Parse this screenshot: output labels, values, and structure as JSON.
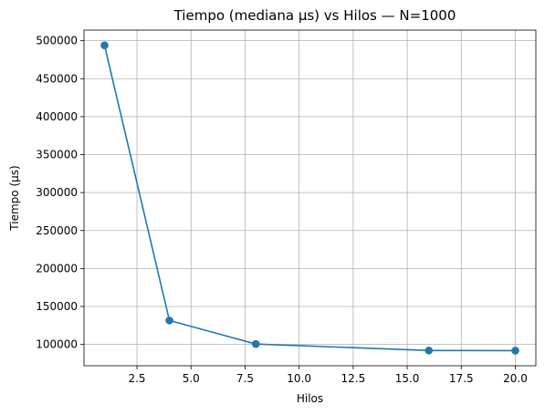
{
  "chart_data": {
    "type": "line",
    "title": "Tiempo (mediana µs) vs Hilos — N=1000",
    "xlabel": "Hilos",
    "ylabel": "Tiempo (µs)",
    "x": [
      1,
      4,
      8,
      16,
      20
    ],
    "series": [
      {
        "values": [
          494000,
          131500,
          100500,
          92000,
          91800
        ],
        "color": "#1f77b4",
        "marker": "circle"
      }
    ],
    "xlim": [
      0.05,
      20.95
    ],
    "ylim": [
      71900,
      514000
    ],
    "xticks": [
      2.5,
      5.0,
      7.5,
      10.0,
      12.5,
      15.0,
      17.5,
      20.0
    ],
    "xtick_labels": [
      "2.5",
      "5.0",
      "7.5",
      "10.0",
      "12.5",
      "15.0",
      "17.5",
      "20.0"
    ],
    "yticks": [
      100000,
      150000,
      200000,
      250000,
      300000,
      350000,
      400000,
      450000,
      500000
    ],
    "ytick_labels": [
      "100000",
      "150000",
      "200000",
      "250000",
      "300000",
      "350000",
      "400000",
      "450000",
      "500000"
    ],
    "grid": true,
    "legend": "none"
  }
}
